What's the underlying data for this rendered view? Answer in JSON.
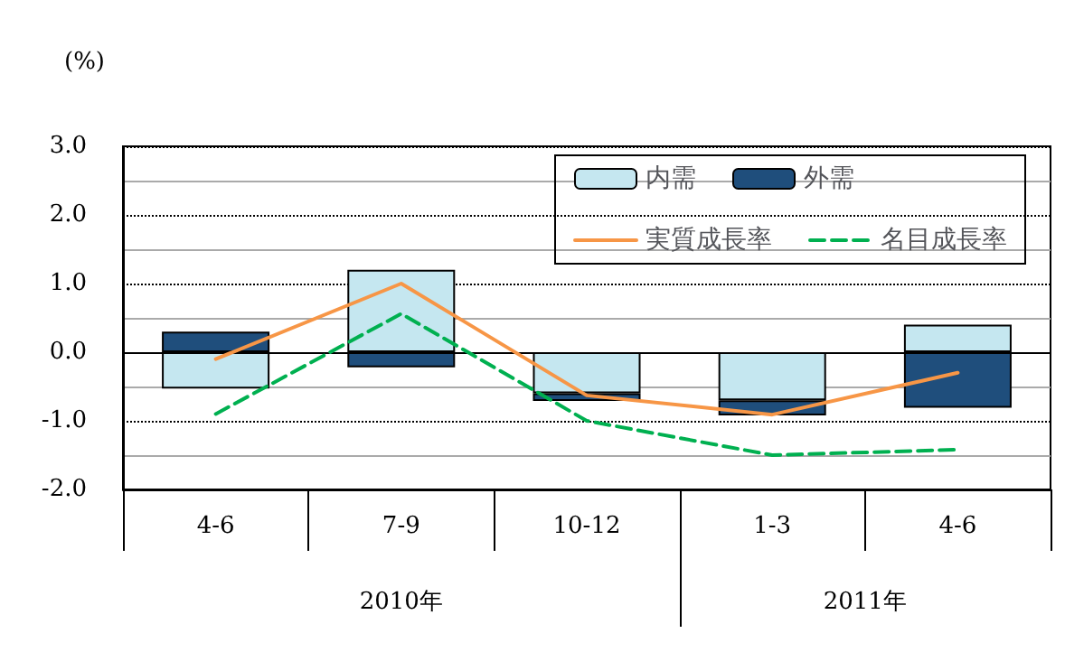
{
  "chart_data": {
    "type": "bar",
    "ylabel": "(%)",
    "categories": [
      "4-6",
      "7-9",
      "10-12",
      "1-3",
      "4-6"
    ],
    "stacked": true,
    "series": [
      {
        "name": "内需",
        "color": "#c5e7f0",
        "values": [
          -0.53,
          1.2,
          -0.6,
          -0.7,
          0.4
        ]
      },
      {
        "name": "外需",
        "color": "#1f4e7c",
        "values": [
          0.3,
          -0.22,
          -0.11,
          -0.22,
          -0.81
        ]
      },
      {
        "name": "実質成長率",
        "type": "line",
        "color": "#f79646",
        "line_style": "solid",
        "values": [
          -0.1,
          1.0,
          -0.63,
          -0.91,
          -0.3
        ]
      },
      {
        "name": "名目成長率",
        "type": "line",
        "color": "#00b050",
        "line_style": "dashed",
        "values": [
          -0.9,
          0.56,
          -1.0,
          -1.5,
          -1.42
        ]
      }
    ],
    "ylim": [
      -2,
      3
    ],
    "yticks": [
      {
        "value": -2,
        "label": "-2.0"
      },
      {
        "value": -1,
        "label": "-1.0"
      },
      {
        "value": 0,
        "label": "0.0"
      },
      {
        "value": 1,
        "label": "1.0"
      },
      {
        "value": 2,
        "label": "2.0"
      },
      {
        "value": 3,
        "label": "3.0"
      }
    ],
    "grid": "y",
    "legend": "top right",
    "marker": "none",
    "annotations": [
      "2010年",
      "2011年"
    ]
  }
}
